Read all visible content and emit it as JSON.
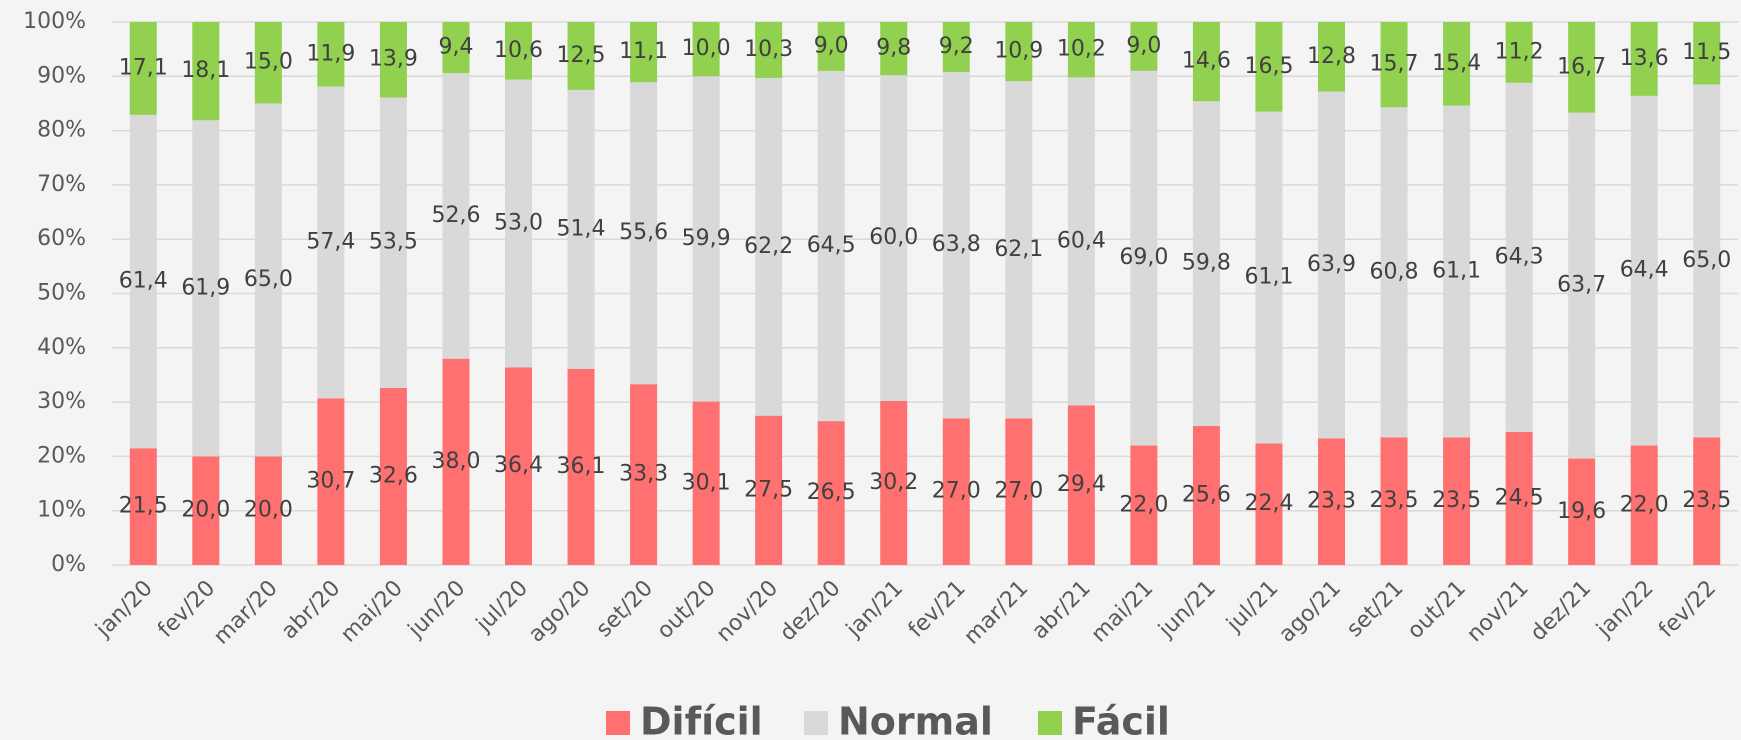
{
  "chart_data": {
    "type": "stacked_bar_100",
    "categories": [
      "jan/20",
      "fev/20",
      "mar/20",
      "abr/20",
      "mai/20",
      "jun/20",
      "jul/20",
      "ago/20",
      "set/20",
      "out/20",
      "nov/20",
      "dez/20",
      "jan/21",
      "fev/21",
      "mar/21",
      "abr/21",
      "mai/21",
      "jun/21",
      "jul/21",
      "ago/21",
      "set/21",
      "out/21",
      "nov/21",
      "dez/21",
      "jan/22",
      "fev/22"
    ],
    "series": [
      {
        "name": "Difícil",
        "color": "#ff7070",
        "values": [
          21.5,
          20.0,
          20.0,
          30.7,
          32.6,
          38.0,
          36.4,
          36.1,
          33.3,
          30.1,
          27.5,
          26.5,
          30.2,
          27.0,
          27.0,
          29.4,
          22.0,
          25.6,
          22.4,
          23.3,
          23.5,
          23.5,
          24.5,
          19.6,
          22.0,
          23.5
        ],
        "value_labels": [
          "21,5",
          "20,0",
          "20,0",
          "30,7",
          "32,6",
          "38,0",
          "36,4",
          "36,1",
          "33,3",
          "30,1",
          "27,5",
          "26,5",
          "30,2",
          "27,0",
          "27,0",
          "29,4",
          "22,0",
          "25,6",
          "22,4",
          "23,3",
          "23,5",
          "23,5",
          "24,5",
          "19,6",
          "22,0",
          "23,5"
        ]
      },
      {
        "name": "Normal",
        "color": "#d9d9d9",
        "values": [
          61.4,
          61.9,
          65.0,
          57.4,
          53.5,
          52.6,
          53.0,
          51.4,
          55.6,
          59.9,
          62.2,
          64.5,
          60.0,
          63.8,
          62.1,
          60.4,
          69.0,
          59.8,
          61.1,
          63.9,
          60.8,
          61.1,
          64.3,
          63.7,
          64.4,
          65.0
        ],
        "value_labels": [
          "61,4",
          "61,9",
          "65,0",
          "57,4",
          "53,5",
          "52,6",
          "53,0",
          "51,4",
          "55,6",
          "59,9",
          "62,2",
          "64,5",
          "60,0",
          "63,8",
          "62,1",
          "60,4",
          "69,0",
          "59,8",
          "61,1",
          "63,9",
          "60,8",
          "61,1",
          "64,3",
          "63,7",
          "64,4",
          "65,0"
        ]
      },
      {
        "name": "Fácil",
        "color": "#92d050",
        "values": [
          17.1,
          18.1,
          15.0,
          11.9,
          13.9,
          9.4,
          10.6,
          12.5,
          11.1,
          10.0,
          10.3,
          9.0,
          9.8,
          9.2,
          10.9,
          10.2,
          9.0,
          14.6,
          16.5,
          12.8,
          15.7,
          15.4,
          11.2,
          16.7,
          13.6,
          11.5
        ],
        "value_labels": [
          "17,1",
          "18,1",
          "15,0",
          "11,9",
          "13,9",
          "9,4",
          "10,6",
          "12,5",
          "11,1",
          "10,0",
          "10,3",
          "9,0",
          "9,8",
          "9,2",
          "10,9",
          "10,2",
          "9,0",
          "14,6",
          "16,5",
          "12,8",
          "15,7",
          "15,4",
          "11,2",
          "16,7",
          "13,6",
          "11,5"
        ]
      }
    ],
    "ylim": [
      0,
      100
    ],
    "yticks": [
      {
        "value": 0,
        "label": "0%"
      },
      {
        "value": 10,
        "label": "10%"
      },
      {
        "value": 20,
        "label": "20%"
      },
      {
        "value": 30,
        "label": "30%"
      },
      {
        "value": 40,
        "label": "40%"
      },
      {
        "value": 50,
        "label": "50%"
      },
      {
        "value": 60,
        "label": "60%"
      },
      {
        "value": 70,
        "label": "70%"
      },
      {
        "value": 80,
        "label": "80%"
      },
      {
        "value": 90,
        "label": "90%"
      },
      {
        "value": 100,
        "label": "100%"
      }
    ],
    "grid": true,
    "legend": "bottom"
  }
}
